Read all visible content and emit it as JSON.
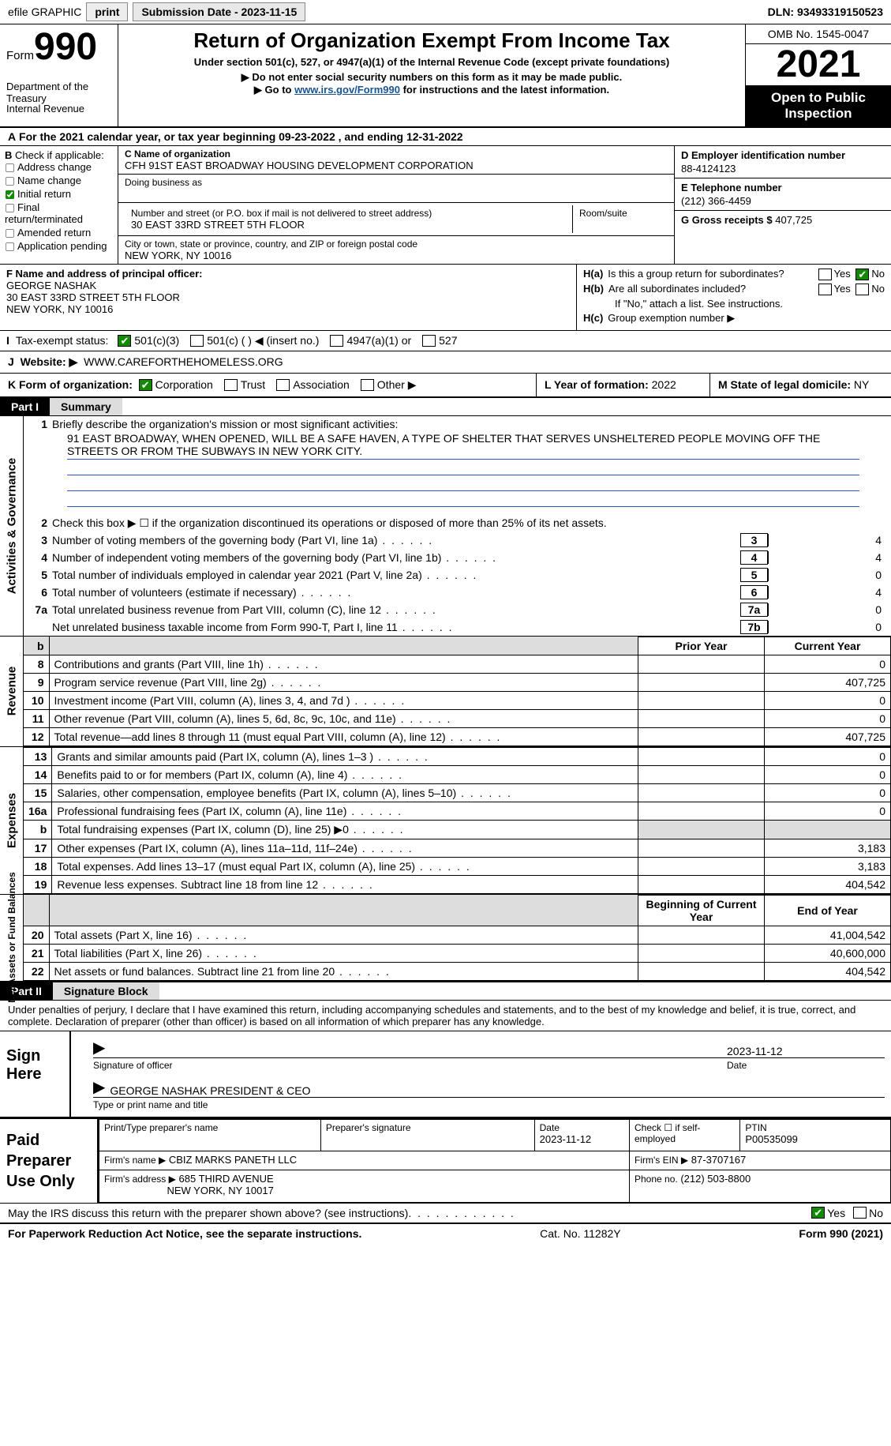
{
  "topbar": {
    "efile": "efile GRAPHIC",
    "print": "print",
    "submission": "Submission Date - 2023-11-15",
    "dln": "DLN: 93493319150523"
  },
  "header": {
    "form_word": "Form",
    "form_no": "990",
    "dept": "Department of the Treasury",
    "irs": "Internal Revenue Service",
    "title": "Return of Organization Exempt From Income Tax",
    "subtitle": "Under section 501(c), 527, or 4947(a)(1) of the Internal Revenue Code (except private foundations)",
    "instr1": "▶ Do not enter social security numbers on this form as it may be made public.",
    "instr2_pre": "▶ Go to ",
    "instr2_link": "www.irs.gov/Form990",
    "instr2_post": " for instructions and the latest information.",
    "omb": "OMB No. 1545-0047",
    "year": "2021",
    "open": "Open to Public Inspection"
  },
  "a": {
    "line": "For the 2021 calendar year, or tax year beginning 09-23-2022    , and ending 12-31-2022"
  },
  "b": {
    "label": "Check if applicable:",
    "opts": [
      "Address change",
      "Name change",
      "Initial return",
      "Final return/terminated",
      "Amended return",
      "Application pending"
    ],
    "checked_idx": 2
  },
  "c": {
    "name_lbl": "C Name of organization",
    "name": "CFH 91ST EAST BROADWAY HOUSING DEVELOPMENT CORPORATION",
    "dba_lbl": "Doing business as",
    "addr_lbl": "Number and street (or P.O. box if mail is not delivered to street address)",
    "room_lbl": "Room/suite",
    "addr": "30 EAST 33RD STREET 5TH FLOOR",
    "city_lbl": "City or town, state or province, country, and ZIP or foreign postal code",
    "city": "NEW YORK, NY  10016"
  },
  "d": {
    "ein_lbl": "D Employer identification number",
    "ein": "88-4124123",
    "tel_lbl": "E Telephone number",
    "tel": "(212) 366-4459",
    "gross_lbl": "G Gross receipts $",
    "gross": "407,725"
  },
  "f": {
    "lbl": "F Name and address of principal officer:",
    "name": "GEORGE NASHAK",
    "addr1": "30 EAST 33RD STREET 5TH FLOOR",
    "addr2": "NEW YORK, NY  10016"
  },
  "h": {
    "a_lbl": "H(a)",
    "a_q": "Is this a group return for subordinates?",
    "b_lbl": "H(b)",
    "b_q": "Are all subordinates included?",
    "b_note": "If \"No,\" attach a list. See instructions.",
    "c_lbl": "H(c)",
    "c_q": "Group exemption number ▶"
  },
  "i": {
    "lbl": "Tax-exempt status:",
    "opt1": "501(c)(3)",
    "opt2": "501(c) (  ) ◀ (insert no.)",
    "opt3": "4947(a)(1) or",
    "opt4": "527"
  },
  "j": {
    "lbl": "Website: ▶",
    "val": "WWW.CAREFORTHEHOMELESS.ORG"
  },
  "k": {
    "lbl": "K Form of organization:",
    "opts": [
      "Corporation",
      "Trust",
      "Association",
      "Other ▶"
    ],
    "l_lbl": "L Year of formation:",
    "l_val": "2022",
    "m_lbl": "M State of legal domicile:",
    "m_val": "NY"
  },
  "part1": {
    "tag": "Part I",
    "title": "Summary",
    "mission_lbl": "Briefly describe the organization's mission or most significant activities:",
    "mission": "91 EAST BROADWAY, WHEN OPENED, WILL BE A SAFE HAVEN, A TYPE OF SHELTER THAT SERVES UNSHELTERED PEOPLE MOVING OFF THE STREETS OR FROM THE SUBWAYS IN NEW YORK CITY.",
    "line2": "Check this box ▶ ☐  if the organization discontinued its operations or disposed of more than 25% of its net assets.",
    "vert1": "Activities & Governance",
    "vert2": "Revenue",
    "vert3": "Expenses",
    "vert4": "Net Assets or Fund Balances",
    "gov_lines": [
      {
        "n": "3",
        "t": "Number of voting members of the governing body (Part VI, line 1a)",
        "box": "3",
        "v": "4"
      },
      {
        "n": "4",
        "t": "Number of independent voting members of the governing body (Part VI, line 1b)",
        "box": "4",
        "v": "4"
      },
      {
        "n": "5",
        "t": "Total number of individuals employed in calendar year 2021 (Part V, line 2a)",
        "box": "5",
        "v": "0"
      },
      {
        "n": "6",
        "t": "Total number of volunteers (estimate if necessary)",
        "box": "6",
        "v": "4"
      },
      {
        "n": "7a",
        "t": "Total unrelated business revenue from Part VIII, column (C), line 12",
        "box": "7a",
        "v": "0"
      },
      {
        "n": "",
        "t": "Net unrelated business taxable income from Form 990-T, Part I, line 11",
        "box": "7b",
        "v": "0"
      }
    ],
    "th_prior": "Prior Year",
    "th_current": "Current Year",
    "rev_lines": [
      {
        "n": "8",
        "t": "Contributions and grants (Part VIII, line 1h)",
        "p": "",
        "c": "0"
      },
      {
        "n": "9",
        "t": "Program service revenue (Part VIII, line 2g)",
        "p": "",
        "c": "407,725"
      },
      {
        "n": "10",
        "t": "Investment income (Part VIII, column (A), lines 3, 4, and 7d )",
        "p": "",
        "c": "0"
      },
      {
        "n": "11",
        "t": "Other revenue (Part VIII, column (A), lines 5, 6d, 8c, 9c, 10c, and 11e)",
        "p": "",
        "c": "0"
      },
      {
        "n": "12",
        "t": "Total revenue—add lines 8 through 11 (must equal Part VIII, column (A), line 12)",
        "p": "",
        "c": "407,725"
      }
    ],
    "exp_lines": [
      {
        "n": "13",
        "t": "Grants and similar amounts paid (Part IX, column (A), lines 1–3 )",
        "p": "",
        "c": "0"
      },
      {
        "n": "14",
        "t": "Benefits paid to or for members (Part IX, column (A), line 4)",
        "p": "",
        "c": "0"
      },
      {
        "n": "15",
        "t": "Salaries, other compensation, employee benefits (Part IX, column (A), lines 5–10)",
        "p": "",
        "c": "0"
      },
      {
        "n": "16a",
        "t": "Professional fundraising fees (Part IX, column (A), line 11e)",
        "p": "",
        "c": "0"
      },
      {
        "n": "b",
        "t": "Total fundraising expenses (Part IX, column (D), line 25) ▶0",
        "p": "shade",
        "c": "shade"
      },
      {
        "n": "17",
        "t": "Other expenses (Part IX, column (A), lines 11a–11d, 11f–24e)",
        "p": "",
        "c": "3,183"
      },
      {
        "n": "18",
        "t": "Total expenses. Add lines 13–17 (must equal Part IX, column (A), line 25)",
        "p": "",
        "c": "3,183"
      },
      {
        "n": "19",
        "t": "Revenue less expenses. Subtract line 18 from line 12",
        "p": "",
        "c": "404,542"
      }
    ],
    "th_beg": "Beginning of Current Year",
    "th_end": "End of Year",
    "net_lines": [
      {
        "n": "20",
        "t": "Total assets (Part X, line 16)",
        "p": "",
        "c": "41,004,542"
      },
      {
        "n": "21",
        "t": "Total liabilities (Part X, line 26)",
        "p": "",
        "c": "40,600,000"
      },
      {
        "n": "22",
        "t": "Net assets or fund balances. Subtract line 21 from line 20",
        "p": "",
        "c": "404,542"
      }
    ]
  },
  "part2": {
    "tag": "Part II",
    "title": "Signature Block",
    "intro": "Under penalties of perjury, I declare that I have examined this return, including accompanying schedules and statements, and to the best of my knowledge and belief, it is true, correct, and complete. Declaration of preparer (other than officer) is based on all information of which preparer has any knowledge.",
    "sign_here": "Sign Here",
    "sig_lbl": "Signature of officer",
    "date_lbl": "Date",
    "sig_date": "2023-11-12",
    "officer": "GEORGE NASHAK  PRESIDENT & CEO",
    "type_lbl": "Type or print name and title",
    "paid": "Paid Preparer Use Only",
    "prep_name_lbl": "Print/Type preparer's name",
    "prep_sig_lbl": "Preparer's signature",
    "prep_date_lbl": "Date",
    "prep_date": "2023-11-12",
    "prep_chk_lbl": "Check ☐ if self-employed",
    "ptin_lbl": "PTIN",
    "ptin": "P00535099",
    "firm_name_lbl": "Firm's name    ▶",
    "firm_name": "CBIZ MARKS PANETH LLC",
    "firm_ein_lbl": "Firm's EIN ▶",
    "firm_ein": "87-3707167",
    "firm_addr_lbl": "Firm's address ▶",
    "firm_addr": "685 THIRD AVENUE",
    "firm_city": "NEW YORK, NY  10017",
    "firm_phone_lbl": "Phone no.",
    "firm_phone": "(212) 503-8800",
    "discuss": "May the IRS discuss this return with the preparer shown above? (see instructions)",
    "yes": "Yes",
    "no": "No"
  },
  "footer": {
    "left": "For Paperwork Reduction Act Notice, see the separate instructions.",
    "mid": "Cat. No. 11282Y",
    "right": "Form 990 (2021)"
  }
}
